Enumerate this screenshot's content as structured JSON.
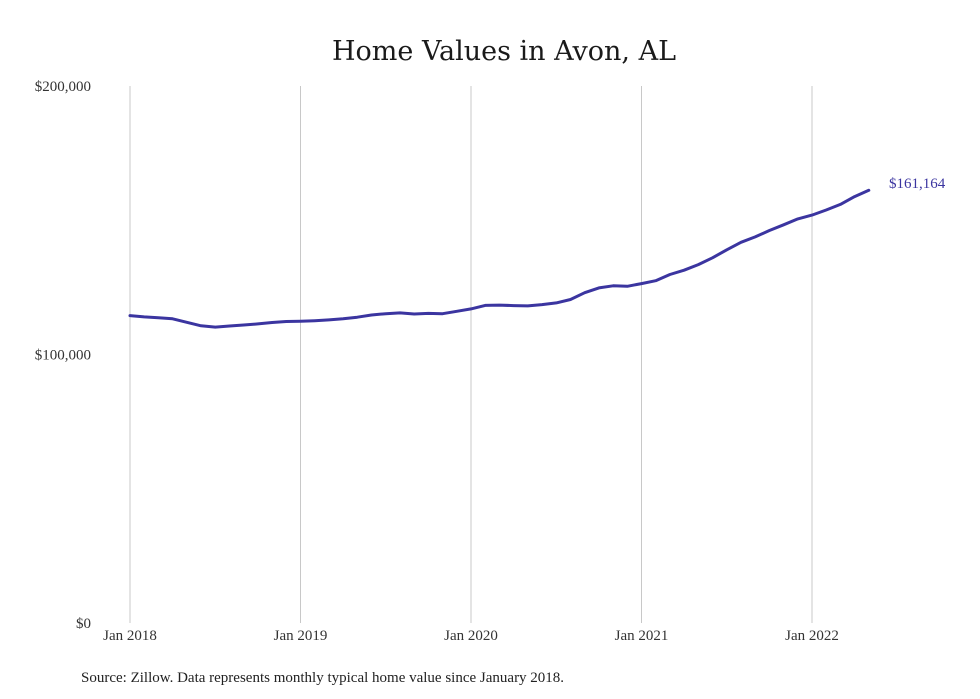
{
  "chart_data": {
    "type": "line",
    "title": "Home Values in Avon, AL",
    "xlabel": "",
    "ylabel": "",
    "x_ticks": [
      "Jan 2018",
      "Jan 2019",
      "Jan 2020",
      "Jan 2021",
      "Jan 2022"
    ],
    "y_ticks": [
      "$0",
      "$100,000",
      "$200,000"
    ],
    "y_tick_values": [
      0,
      100000,
      200000
    ],
    "ylim": [
      0,
      200000
    ],
    "xlim": [
      "2018-01",
      "2022-05"
    ],
    "grid": "vertical at January of each year",
    "series": [
      {
        "name": "",
        "color": "#3b35a0",
        "x": [
          "2018-01",
          "2018-02",
          "2018-03",
          "2018-04",
          "2018-05",
          "2018-06",
          "2018-07",
          "2018-08",
          "2018-09",
          "2018-10",
          "2018-11",
          "2018-12",
          "2019-01",
          "2019-02",
          "2019-03",
          "2019-04",
          "2019-05",
          "2019-06",
          "2019-07",
          "2019-08",
          "2019-09",
          "2019-10",
          "2019-11",
          "2019-12",
          "2020-01",
          "2020-02",
          "2020-03",
          "2020-04",
          "2020-05",
          "2020-06",
          "2020-07",
          "2020-08",
          "2020-09",
          "2020-10",
          "2020-11",
          "2020-12",
          "2021-01",
          "2021-02",
          "2021-03",
          "2021-04",
          "2021-05",
          "2021-06",
          "2021-07",
          "2021-08",
          "2021-09",
          "2021-10",
          "2021-11",
          "2021-12",
          "2022-01",
          "2022-02",
          "2022-03",
          "2022-04",
          "2022-05"
        ],
        "values": [
          114500,
          114000,
          113700,
          113300,
          112000,
          110700,
          110200,
          110600,
          111000,
          111400,
          111900,
          112300,
          112400,
          112600,
          112900,
          113300,
          113900,
          114700,
          115200,
          115500,
          115100,
          115300,
          115200,
          116100,
          117000,
          118300,
          118400,
          118200,
          118100,
          118600,
          119200,
          120500,
          123000,
          124800,
          125600,
          125400,
          126400,
          127500,
          129800,
          131400,
          133500,
          136000,
          139000,
          141800,
          143800,
          146200,
          148300,
          150500,
          151900,
          153800,
          155900,
          158800,
          161164
        ]
      }
    ],
    "end_label": "$161,164"
  },
  "footer": {
    "source": "Source: Zillow. Data represents monthly typical home value since January 2018."
  }
}
